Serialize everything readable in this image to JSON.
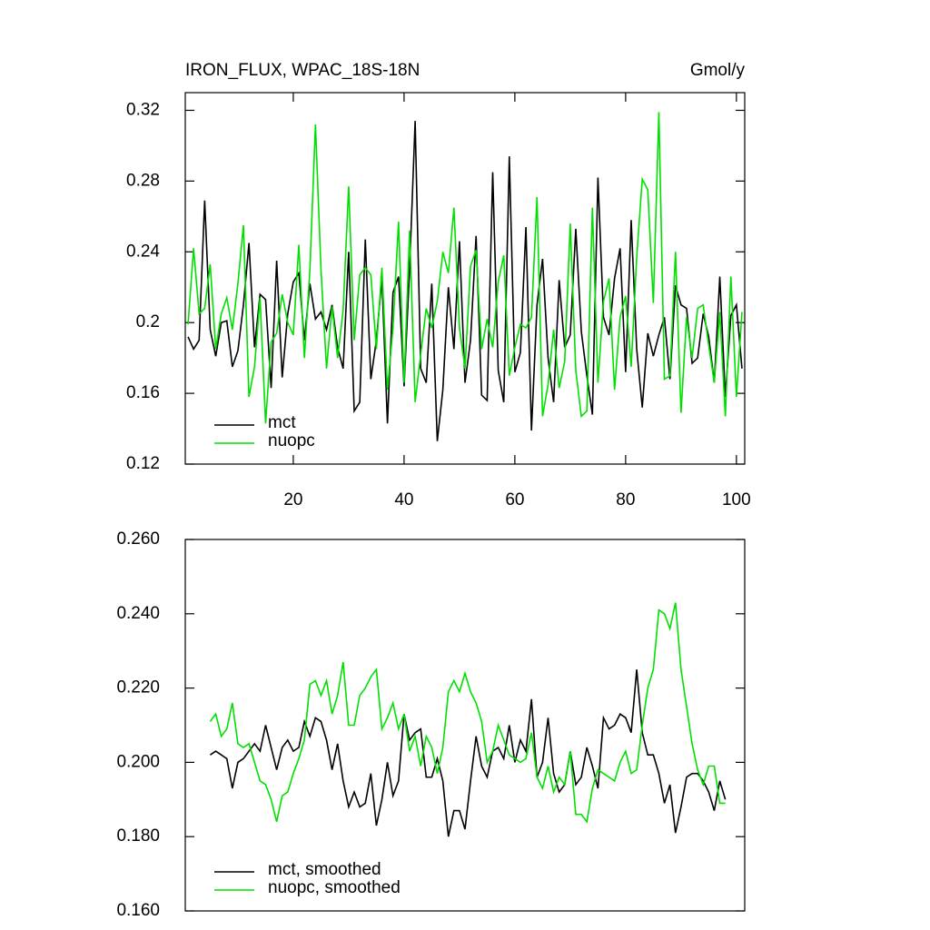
{
  "chart_data": [
    {
      "type": "line",
      "title": "IRON_FLUX, WPAC_18S-18N",
      "units_label": "Gmol/y",
      "x": [
        1,
        2,
        3,
        4,
        5,
        6,
        7,
        8,
        9,
        10,
        11,
        12,
        13,
        14,
        15,
        16,
        17,
        18,
        19,
        20,
        21,
        22,
        23,
        24,
        25,
        26,
        27,
        28,
        29,
        30,
        31,
        32,
        33,
        34,
        35,
        36,
        37,
        38,
        39,
        40,
        41,
        42,
        43,
        44,
        45,
        46,
        47,
        48,
        49,
        50,
        51,
        52,
        53,
        54,
        55,
        56,
        57,
        58,
        59,
        60,
        61,
        62,
        63,
        64,
        65,
        66,
        67,
        68,
        69,
        70,
        71,
        72,
        73,
        74,
        75,
        76,
        77,
        78,
        79,
        80,
        81,
        82,
        83,
        84,
        85,
        86,
        87,
        88,
        89,
        90,
        91,
        92,
        93,
        94,
        95,
        96,
        97,
        98,
        99,
        100,
        101
      ],
      "series": [
        {
          "name": "mct",
          "color": "#000000",
          "values": [
            0.192,
            0.185,
            0.19,
            0.269,
            0.196,
            0.181,
            0.2,
            0.201,
            0.175,
            0.184,
            0.21,
            0.245,
            0.186,
            0.216,
            0.213,
            0.163,
            0.235,
            0.169,
            0.205,
            0.223,
            0.228,
            0.19,
            0.222,
            0.202,
            0.206,
            0.196,
            0.21,
            0.186,
            0.174,
            0.24,
            0.15,
            0.155,
            0.247,
            0.168,
            0.19,
            0.225,
            0.143,
            0.217,
            0.226,
            0.164,
            0.23,
            0.314,
            0.174,
            0.166,
            0.222,
            0.133,
            0.162,
            0.22,
            0.185,
            0.246,
            0.166,
            0.19,
            0.249,
            0.159,
            0.156,
            0.285,
            0.173,
            0.155,
            0.294,
            0.172,
            0.183,
            0.254,
            0.139,
            0.21,
            0.236,
            0.18,
            0.155,
            0.224,
            0.186,
            0.193,
            0.253,
            0.195,
            0.17,
            0.148,
            0.282,
            0.203,
            0.193,
            0.225,
            0.242,
            0.172,
            0.258,
            0.185,
            0.152,
            0.194,
            0.181,
            0.193,
            0.203,
            0.168,
            0.221,
            0.21,
            0.208,
            0.177,
            0.18,
            0.205,
            0.192,
            0.166,
            0.226,
            0.158,
            0.204,
            0.21,
            0.174
          ]
        },
        {
          "name": "nuopc",
          "color": "#00e000",
          "values": [
            0.199,
            0.242,
            0.205,
            0.208,
            0.233,
            0.185,
            0.205,
            0.214,
            0.196,
            0.222,
            0.255,
            0.158,
            0.175,
            0.214,
            0.143,
            0.189,
            0.194,
            0.216,
            0.2,
            0.193,
            0.244,
            0.18,
            0.23,
            0.312,
            0.23,
            0.174,
            0.209,
            0.18,
            0.207,
            0.277,
            0.19,
            0.227,
            0.231,
            0.227,
            0.185,
            0.231,
            0.162,
            0.197,
            0.257,
            0.166,
            0.252,
            0.155,
            0.182,
            0.208,
            0.197,
            0.212,
            0.24,
            0.228,
            0.265,
            0.197,
            0.174,
            0.232,
            0.241,
            0.185,
            0.202,
            0.186,
            0.223,
            0.238,
            0.17,
            0.186,
            0.199,
            0.197,
            0.203,
            0.271,
            0.147,
            0.165,
            0.196,
            0.163,
            0.178,
            0.256,
            0.173,
            0.147,
            0.15,
            0.265,
            0.166,
            0.212,
            0.225,
            0.162,
            0.203,
            0.215,
            0.175,
            0.237,
            0.281,
            0.275,
            0.211,
            0.319,
            0.168,
            0.17,
            0.24,
            0.149,
            0.203,
            0.18,
            0.208,
            0.21,
            0.187,
            0.166,
            0.206,
            0.147,
            0.226,
            0.158,
            0.206
          ]
        }
      ],
      "xlim": [
        0.5,
        101.5
      ],
      "xticks": [
        20,
        40,
        60,
        80,
        100
      ],
      "ylim": [
        0.12,
        0.33
      ],
      "yticks": [
        0.12,
        0.16,
        0.2,
        0.24,
        0.28,
        0.32
      ],
      "legend": "lower left"
    },
    {
      "type": "line",
      "x": [
        5,
        6,
        7,
        8,
        9,
        10,
        11,
        12,
        13,
        14,
        15,
        16,
        17,
        18,
        19,
        20,
        21,
        22,
        23,
        24,
        25,
        26,
        27,
        28,
        29,
        30,
        31,
        32,
        33,
        34,
        35,
        36,
        37,
        38,
        39,
        40,
        41,
        42,
        43,
        44,
        45,
        46,
        47,
        48,
        49,
        50,
        51,
        52,
        53,
        54,
        55,
        56,
        57,
        58,
        59,
        60,
        61,
        62,
        63,
        64,
        65,
        66,
        67,
        68,
        69,
        70,
        71,
        72,
        73,
        74,
        75,
        76,
        77,
        78,
        79,
        80,
        81,
        82,
        83,
        84,
        85,
        86,
        87,
        88,
        89,
        90,
        91,
        92,
        93,
        94,
        95,
        96,
        97,
        98
      ],
      "series": [
        {
          "name": "mct, smoothed",
          "color": "#000000",
          "values": [
            0.202,
            0.203,
            0.202,
            0.201,
            0.193,
            0.2,
            0.201,
            0.203,
            0.205,
            0.203,
            0.21,
            0.204,
            0.198,
            0.204,
            0.206,
            0.203,
            0.204,
            0.211,
            0.207,
            0.212,
            0.211,
            0.206,
            0.198,
            0.205,
            0.195,
            0.188,
            0.192,
            0.188,
            0.189,
            0.197,
            0.183,
            0.19,
            0.2,
            0.191,
            0.195,
            0.213,
            0.206,
            0.208,
            0.209,
            0.196,
            0.196,
            0.201,
            0.195,
            0.18,
            0.187,
            0.187,
            0.182,
            0.195,
            0.207,
            0.199,
            0.196,
            0.203,
            0.204,
            0.201,
            0.21,
            0.2,
            0.206,
            0.203,
            0.217,
            0.196,
            0.2,
            0.212,
            0.197,
            0.192,
            0.194,
            0.203,
            0.194,
            0.196,
            0.204,
            0.199,
            0.193,
            0.212,
            0.209,
            0.21,
            0.213,
            0.212,
            0.208,
            0.225,
            0.208,
            0.202,
            0.202,
            0.197,
            0.189,
            0.194,
            0.181,
            0.188,
            0.196,
            0.197,
            0.197,
            0.195,
            0.192,
            0.187,
            0.195,
            0.19
          ]
        },
        {
          "name": "nuopc, smoothed",
          "color": "#00e000",
          "values": [
            0.211,
            0.213,
            0.207,
            0.209,
            0.216,
            0.205,
            0.204,
            0.205,
            0.2,
            0.195,
            0.194,
            0.19,
            0.184,
            0.191,
            0.192,
            0.197,
            0.201,
            0.206,
            0.221,
            0.222,
            0.218,
            0.222,
            0.213,
            0.218,
            0.227,
            0.21,
            0.21,
            0.218,
            0.22,
            0.223,
            0.225,
            0.209,
            0.212,
            0.216,
            0.209,
            0.213,
            0.203,
            0.207,
            0.199,
            0.207,
            0.204,
            0.197,
            0.204,
            0.219,
            0.222,
            0.219,
            0.224,
            0.219,
            0.216,
            0.211,
            0.2,
            0.203,
            0.21,
            0.206,
            0.202,
            0.201,
            0.2,
            0.201,
            0.208,
            0.196,
            0.193,
            0.199,
            0.192,
            0.196,
            0.194,
            0.203,
            0.186,
            0.186,
            0.184,
            0.193,
            0.198,
            0.197,
            0.196,
            0.195,
            0.2,
            0.203,
            0.197,
            0.198,
            0.21,
            0.22,
            0.225,
            0.241,
            0.24,
            0.236,
            0.243,
            0.225,
            0.215,
            0.205,
            0.198,
            0.194,
            0.199,
            0.199,
            0.189,
            0.189
          ]
        }
      ],
      "xlim": [
        0.5,
        101.5
      ],
      "ylim": [
        0.16,
        0.26
      ],
      "yticks": [
        {
          "value": 0.16,
          "label": "0.160"
        },
        {
          "value": 0.18,
          "label": "0.180"
        },
        {
          "value": 0.2,
          "label": "0.200"
        },
        {
          "value": 0.22,
          "label": "0.220"
        },
        {
          "value": 0.24,
          "label": "0.240"
        },
        {
          "value": 0.26,
          "label": "0.260"
        }
      ],
      "legend": "lower left"
    }
  ]
}
